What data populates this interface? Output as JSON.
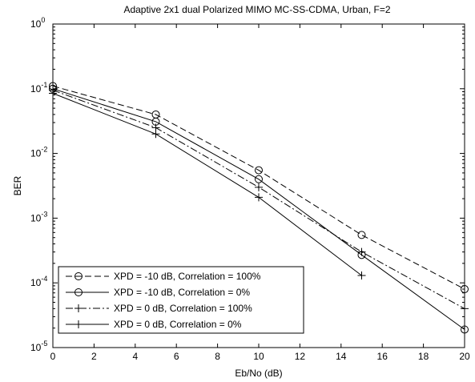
{
  "chart_data": {
    "type": "line",
    "title": "Adaptive 2x1 dual Polarized MIMO MC-SS-CDMA, Urban, F=2",
    "xlabel": "Eb/No (dB)",
    "ylabel": "BER",
    "x_scale": "linear",
    "y_scale": "log",
    "xlim": [
      0,
      20
    ],
    "ylim": [
      1e-05,
      1
    ],
    "grid": false,
    "legend_position": "bottom-left",
    "x_ticks": [
      0,
      2,
      4,
      6,
      8,
      10,
      12,
      14,
      16,
      18,
      20
    ],
    "y_ticks": [
      {
        "value": 1e-05,
        "base": "10",
        "exp": "-5"
      },
      {
        "value": 0.0001,
        "base": "10",
        "exp": "-4"
      },
      {
        "value": 0.001,
        "base": "10",
        "exp": "-3"
      },
      {
        "value": 0.01,
        "base": "10",
        "exp": "-2"
      },
      {
        "value": 0.1,
        "base": "10",
        "exp": "-1"
      },
      {
        "value": 1,
        "base": "10",
        "exp": "0"
      }
    ],
    "series": [
      {
        "name": "XPD = -10 dB, Correlation = 100%",
        "marker": "circle",
        "line_style": "dashed",
        "x": [
          0,
          5,
          10,
          15,
          20
        ],
        "y": [
          0.11,
          0.04,
          0.0055,
          0.00055,
          8e-05
        ]
      },
      {
        "name": "XPD = -10 dB, Correlation = 0%",
        "marker": "circle",
        "line_style": "solid",
        "x": [
          0,
          5,
          10,
          15,
          20
        ],
        "y": [
          0.1,
          0.031,
          0.004,
          0.00027,
          1.9e-05
        ]
      },
      {
        "name": "XPD = 0 dB, Correlation = 100%",
        "marker": "plus",
        "line_style": "dashdot",
        "x": [
          0,
          5,
          10,
          15,
          20
        ],
        "y": [
          0.095,
          0.025,
          0.003,
          0.0003,
          4e-05
        ]
      },
      {
        "name": "XPD = 0 dB, Correlation = 0%",
        "marker": "plus",
        "line_style": "solid",
        "x": [
          0,
          5,
          10,
          15
        ],
        "y": [
          0.085,
          0.02,
          0.0021,
          0.00013
        ]
      }
    ],
    "colors": {
      "line": "#000000",
      "background": "#ffffff"
    }
  }
}
